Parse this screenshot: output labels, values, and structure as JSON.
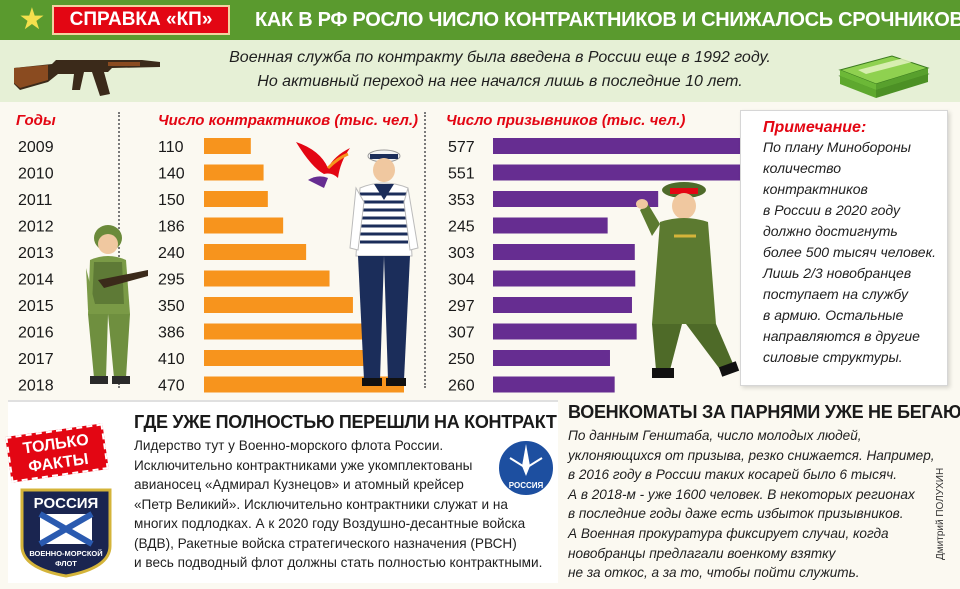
{
  "header": {
    "badge": "СПРАВКА «КП»",
    "title": "КАК В РФ РОСЛО ЧИСЛО КОНТРАКТНИКОВ И СНИЖАЛОСЬ СРОЧНИКОВ?"
  },
  "intro": {
    "line1": "Военная служба по контракту была введена в России еще в 1992 году.",
    "line2": "Но активный переход на нее начался лишь в последние 10 лет."
  },
  "chart_data": {
    "type": "bar",
    "categories": [
      "2009",
      "2010",
      "2011",
      "2012",
      "2013",
      "2014",
      "2015",
      "2016",
      "2017",
      "2018"
    ],
    "category_label": "Годы",
    "series": [
      {
        "name": "Число контрактников (тыс. чел.)",
        "values": [
          110,
          140,
          150,
          186,
          240,
          295,
          350,
          386,
          410,
          470
        ],
        "color": "#f7941d"
      },
      {
        "name": "Число призывников (тыс. чел.)",
        "values": [
          577,
          551,
          353,
          245,
          303,
          304,
          297,
          307,
          250,
          260
        ],
        "color": "#662d91"
      }
    ]
  },
  "note": {
    "title": "Примечание:",
    "lines": [
      "По плану Минобороны",
      "количество",
      "контрактников",
      "в России в 2020 году",
      "должно достигнуть",
      "более 500 тысяч человек.",
      "Лишь 2/3 новобранцев",
      "поступает на службу",
      "в армию. Остальные",
      "направляются в другие",
      "силовые структуры."
    ]
  },
  "left_panel": {
    "badge_line1": "ТОЛЬКО",
    "badge_line2": "ФАКТЫ",
    "title": "ГДЕ УЖЕ ПОЛНОСТЬЮ ПЕРЕШЛИ НА КОНТРАКТ",
    "lines": [
      "Лидерство тут у Военно-морского флота России.",
      "Исключительно контрактниками уже укомплектованы",
      "авианосец «Адмирал Кузнецов» и атомный крейсер",
      "«Петр Великий». Исключительно контрактники служат и на",
      "многих подлодках. А к 2020 году Воздушно-десантные войска",
      "(ВДВ), Ракетные войска стратегического назначения (РВСН)",
      "и весь подводный флот должны стать полностью контрактными."
    ],
    "patch_top": "РОССИЯ",
    "patch_bottom1": "ВОЕННО-МОРСКОЙ",
    "patch_bottom2": "ФЛОТ",
    "emblem_label": "РОССИЯ"
  },
  "right_panel": {
    "title": "ВОЕНКОМАТЫ ЗА ПАРНЯМИ УЖЕ НЕ БЕГАЮТ",
    "lines": [
      "По данным Генштаба, число молодых людей,",
      "уклоняющихся от призыва, резко снижается. Например,",
      "в 2016 году в России таких косарей было 6 тысяч.",
      "А в 2018-м - уже 1600 человек. В некоторых регионах",
      "в последние годы даже есть избыток призывников.",
      "А Военная прокуратура фиксирует случаи, когда",
      "новобранцы предлагали военкому взятку",
      "не за откос, а за то, чтобы пойти служить."
    ]
  },
  "author": "Дмитрий ПОЛУХИН"
}
